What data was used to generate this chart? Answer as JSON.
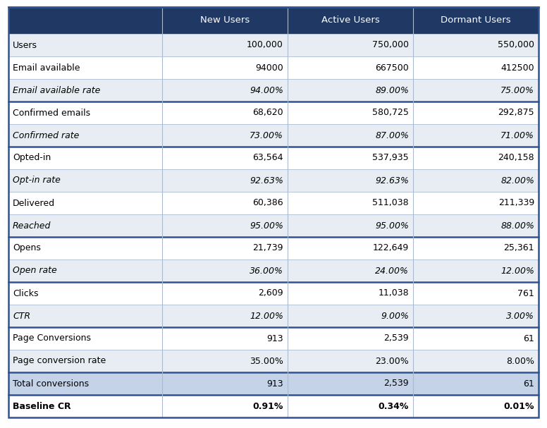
{
  "columns": [
    "",
    "New Users",
    "Active Users",
    "Dormant Users"
  ],
  "rows": [
    {
      "label": "Users",
      "values": [
        "100,000",
        "750,000",
        "550,000"
      ],
      "italic": false,
      "bold": false,
      "thick_bottom": false,
      "row_bg": "light"
    },
    {
      "label": "Email available",
      "values": [
        "94000",
        "667500",
        "412500"
      ],
      "italic": false,
      "bold": false,
      "thick_bottom": false,
      "row_bg": "white"
    },
    {
      "label": "Email available rate",
      "values": [
        "94.00%",
        "89.00%",
        "75.00%"
      ],
      "italic": true,
      "bold": false,
      "thick_bottom": true,
      "row_bg": "light"
    },
    {
      "label": "Confirmed emails",
      "values": [
        "68,620",
        "580,725",
        "292,875"
      ],
      "italic": false,
      "bold": false,
      "thick_bottom": false,
      "row_bg": "white"
    },
    {
      "label": "Confirmed rate",
      "values": [
        "73.00%",
        "87.00%",
        "71.00%"
      ],
      "italic": true,
      "bold": false,
      "thick_bottom": true,
      "row_bg": "light"
    },
    {
      "label": "Opted-in",
      "values": [
        "63,564",
        "537,935",
        "240,158"
      ],
      "italic": false,
      "bold": false,
      "thick_bottom": false,
      "row_bg": "white"
    },
    {
      "label": "Opt-in rate",
      "values": [
        "92.63%",
        "92.63%",
        "82.00%"
      ],
      "italic": true,
      "bold": false,
      "thick_bottom": false,
      "row_bg": "light"
    },
    {
      "label": "Delivered",
      "values": [
        "60,386",
        "511,038",
        "211,339"
      ],
      "italic": false,
      "bold": false,
      "thick_bottom": false,
      "row_bg": "white"
    },
    {
      "label": "Reached",
      "values": [
        "95.00%",
        "95.00%",
        "88.00%"
      ],
      "italic": true,
      "bold": false,
      "thick_bottom": true,
      "row_bg": "light"
    },
    {
      "label": "Opens",
      "values": [
        "21,739",
        "122,649",
        "25,361"
      ],
      "italic": false,
      "bold": false,
      "thick_bottom": false,
      "row_bg": "white"
    },
    {
      "label": "Open rate",
      "values": [
        "36.00%",
        "24.00%",
        "12.00%"
      ],
      "italic": true,
      "bold": false,
      "thick_bottom": true,
      "row_bg": "light"
    },
    {
      "label": "Clicks",
      "values": [
        "2,609",
        "11,038",
        "761"
      ],
      "italic": false,
      "bold": false,
      "thick_bottom": false,
      "row_bg": "white"
    },
    {
      "label": "CTR",
      "values": [
        "12.00%",
        "9.00%",
        "3.00%"
      ],
      "italic": true,
      "bold": false,
      "thick_bottom": true,
      "row_bg": "light"
    },
    {
      "label": "Page Conversions",
      "values": [
        "913",
        "2,539",
        "61"
      ],
      "italic": false,
      "bold": false,
      "thick_bottom": false,
      "row_bg": "white"
    },
    {
      "label": "Page conversion rate",
      "values": [
        "35.00%",
        "23.00%",
        "8.00%"
      ],
      "italic": false,
      "bold": false,
      "thick_bottom": true,
      "row_bg": "light"
    },
    {
      "label": "Total conversions",
      "values": [
        "913",
        "2,539",
        "61"
      ],
      "italic": false,
      "bold": false,
      "thick_bottom": true,
      "row_bg": "blue_light"
    },
    {
      "label": "Baseline CR",
      "values": [
        "0.91%",
        "0.34%",
        "0.01%"
      ],
      "italic": false,
      "bold": true,
      "thick_bottom": false,
      "row_bg": "white"
    }
  ],
  "header_bg": "#1F3864",
  "header_text_color": "#FFFFFF",
  "light_bg": "#E8EDF4",
  "white_bg": "#FFFFFF",
  "blue_light_bg": "#C5D3E8",
  "thick_line_color": "#2E5496",
  "thin_line_color": "#AABBD0",
  "outer_border_color": "#2E5496",
  "font_size": 9.0,
  "header_font_size": 9.5
}
